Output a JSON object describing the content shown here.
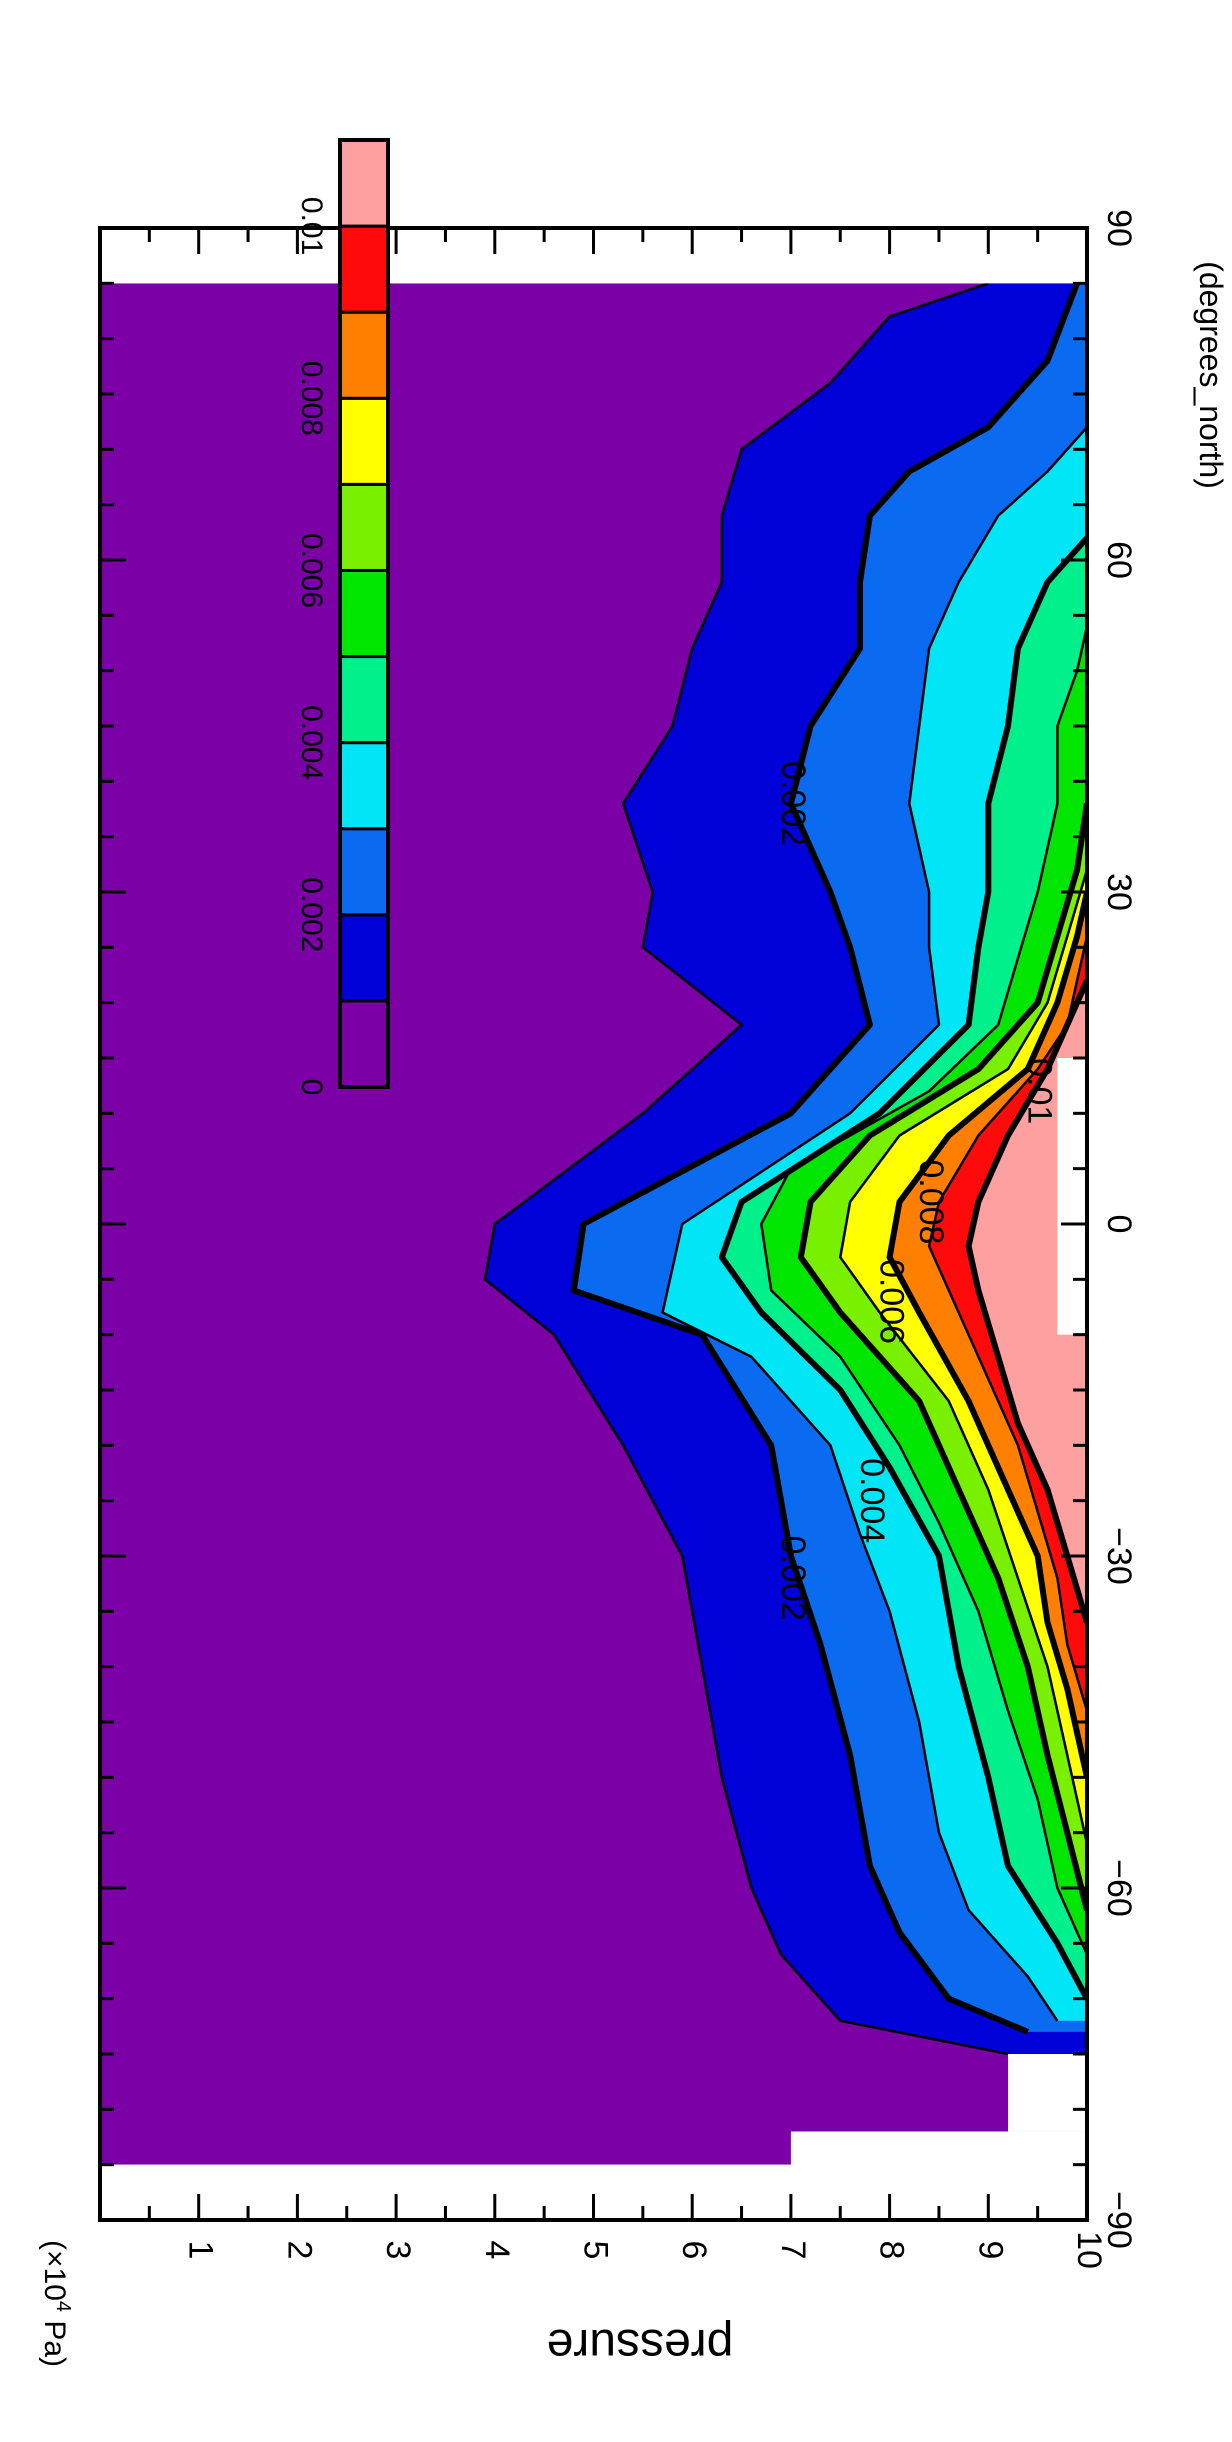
{
  "chart_data": {
    "type": "contour",
    "title": "",
    "x": {
      "label": "(degrees_north)",
      "range": [
        -90,
        90
      ],
      "ticks": [
        -90,
        -60,
        -30,
        0,
        30,
        60,
        90
      ],
      "tick_labels": [
        "−90",
        "−60",
        "−30",
        "0",
        "30",
        "60",
        "90"
      ]
    },
    "y": {
      "label": "pressure",
      "unit_prefix": "(×10",
      "unit_exp": "4",
      "unit_suffix": " Pa)",
      "range": [
        0,
        10
      ],
      "reversed": true,
      "ticks": [
        1,
        2,
        3,
        4,
        5,
        6,
        7,
        8,
        9,
        10
      ],
      "tick_labels": [
        "1",
        "2",
        "3",
        "4",
        "5",
        "6",
        "7",
        "8",
        "9",
        "10"
      ]
    },
    "levels": [
      0,
      0.001,
      0.002,
      0.003,
      0.004,
      0.005,
      0.006,
      0.007,
      0.008,
      0.009,
      0.01
    ],
    "colors": [
      "#7b00a6",
      "#0000d8",
      "#0a6af0",
      "#00e6f6",
      "#00f08c",
      "#00e600",
      "#78f000",
      "#ffff00",
      "#ff8000",
      "#ff0a0a",
      "#ffa0a0"
    ],
    "colorbar": {
      "tick_values": [
        0,
        0.002,
        0.004,
        0.006,
        0.008,
        0.01
      ],
      "tick_labels": [
        "0",
        "0.002",
        "0.004",
        "0.006",
        "0.008",
        "0.01"
      ]
    },
    "contour_labels": [
      {
        "text": "0.002",
        "x": -32,
        "p": 7.0
      },
      {
        "text": "0.004",
        "x": -25,
        "p": 7.8
      },
      {
        "text": "0.006",
        "x": -7,
        "p": 8.0
      },
      {
        "text": "0.008",
        "x": 2,
        "p": 8.4
      },
      {
        "text": "0.01",
        "x": 12,
        "p": 9.5
      },
      {
        "text": "0.002",
        "x": 38,
        "p": 7.0
      }
    ],
    "missing_regions": [
      {
        "x": [
          -90,
          -82
        ],
        "p": [
          7.0,
          10
        ]
      },
      {
        "x": [
          -82,
          -75
        ],
        "p": [
          9.2,
          10
        ]
      },
      {
        "x": [
          -10,
          15
        ],
        "p": [
          9.7,
          10
        ]
      }
    ],
    "boundaries": [
      {
        "x": [
          -75,
          -72,
          -66,
          -60,
          -50,
          -40,
          -30,
          -20,
          -10,
          -5,
          0,
          10,
          18,
          25,
          30,
          38,
          45,
          52,
          58,
          64,
          70,
          76,
          82,
          85
        ],
        "p": [
          9.2,
          7.5,
          6.9,
          6.6,
          6.3,
          6.1,
          5.9,
          5.3,
          4.6,
          3.9,
          4.0,
          5.5,
          6.5,
          5.5,
          5.6,
          5.3,
          5.8,
          6.0,
          6.3,
          6.3,
          6.5,
          7.4,
          8.0,
          9.0
        ]
      },
      {
        "x": [
          -73,
          -70,
          -64,
          -58,
          -48,
          -38,
          -30,
          -20,
          -10,
          -6,
          0,
          10,
          18,
          25,
          30,
          38,
          45,
          52,
          58,
          64,
          68,
          72,
          78,
          85
        ],
        "p": [
          9.4,
          8.6,
          8.1,
          7.8,
          7.6,
          7.3,
          7.0,
          6.8,
          6.1,
          4.8,
          4.9,
          7.0,
          7.8,
          7.6,
          7.4,
          7.0,
          7.2,
          7.7,
          7.7,
          7.8,
          8.2,
          9.0,
          9.6,
          9.9
        ]
      },
      {
        "x": [
          -72,
          -68,
          -62,
          -55,
          -45,
          -35,
          -28,
          -20,
          -12,
          -8,
          0,
          10,
          18,
          25,
          30,
          38,
          45,
          52,
          58,
          64,
          68,
          72
        ],
        "p": [
          9.7,
          9.4,
          8.8,
          8.5,
          8.3,
          8.0,
          7.7,
          7.4,
          6.6,
          5.7,
          5.9,
          7.6,
          8.5,
          8.4,
          8.4,
          8.2,
          8.3,
          8.4,
          8.7,
          9.1,
          9.6,
          10.0
        ]
      },
      {
        "x": [
          -70,
          -65,
          -58,
          -50,
          -40,
          -30,
          -22,
          -15,
          -8,
          -3,
          2,
          10,
          18,
          25,
          30,
          38,
          45,
          52,
          58,
          62
        ],
        "p": [
          10.0,
          9.7,
          9.2,
          9.0,
          8.7,
          8.5,
          8.0,
          7.5,
          6.7,
          6.3,
          6.5,
          7.9,
          8.8,
          8.9,
          9.0,
          9.0,
          9.2,
          9.3,
          9.6,
          10.0
        ]
      },
      {
        "x": [
          -66,
          -60,
          -52,
          -44,
          -35,
          -27,
          -20,
          -12,
          -6,
          0,
          5,
          12,
          18,
          24,
          30,
          38,
          45,
          50,
          54
        ],
        "p": [
          10.0,
          9.7,
          9.5,
          9.2,
          8.9,
          8.5,
          8.1,
          7.5,
          6.8,
          6.7,
          7.0,
          8.4,
          9.1,
          9.3,
          9.5,
          9.7,
          9.7,
          9.9,
          10.0
        ]
      },
      {
        "x": [
          -62,
          -55,
          -48,
          -40,
          -32,
          -24,
          -16,
          -8,
          -3,
          2,
          8,
          14,
          20,
          26,
          32,
          38
        ],
        "p": [
          10.0,
          9.8,
          9.6,
          9.4,
          9.1,
          8.7,
          8.3,
          7.5,
          7.1,
          7.2,
          7.8,
          8.9,
          9.5,
          9.7,
          9.9,
          10.0
        ]
      },
      {
        "x": [
          -56,
          -48,
          -40,
          -32,
          -24,
          -16,
          -8,
          -3,
          2,
          8,
          14,
          20,
          26,
          32,
          36
        ],
        "p": [
          10.0,
          9.8,
          9.6,
          9.3,
          9.0,
          8.6,
          7.9,
          7.5,
          7.6,
          8.1,
          9.2,
          9.6,
          9.8,
          10.0,
          10.0
        ]
      },
      {
        "x": [
          -50,
          -42,
          -36,
          -30,
          -24,
          -16,
          -8,
          -3,
          2,
          8,
          14,
          20,
          26,
          30
        ],
        "p": [
          10.0,
          9.8,
          9.6,
          9.5,
          9.2,
          8.8,
          8.3,
          8.0,
          8.1,
          8.6,
          9.4,
          9.7,
          9.9,
          10.0
        ]
      },
      {
        "x": [
          -44,
          -38,
          -32,
          -26,
          -20,
          -12,
          -6,
          -2,
          2,
          8,
          14,
          18,
          22,
          26
        ],
        "p": [
          10.0,
          9.8,
          9.7,
          9.5,
          9.3,
          8.9,
          8.6,
          8.4,
          8.5,
          8.9,
          9.5,
          9.8,
          9.9,
          10.0
        ]
      },
      {
        "x": [
          -36,
          -30,
          -24,
          -18,
          -12,
          -6,
          -2,
          2,
          8,
          14,
          18,
          22
        ],
        "p": [
          10.0,
          9.8,
          9.6,
          9.3,
          9.1,
          8.9,
          8.8,
          8.9,
          9.2,
          9.6,
          9.8,
          10.0
        ]
      }
    ]
  }
}
